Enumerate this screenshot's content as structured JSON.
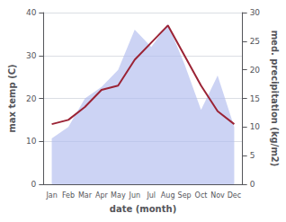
{
  "chart_data": {
    "type": "line",
    "xlabel": "date (month)",
    "ylabel": "max temp (C)",
    "y2label": "med. precipitation (kg/m2)",
    "categories": [
      "Jan",
      "Feb",
      "Mar",
      "Apr",
      "May",
      "Jun",
      "Jul",
      "Aug",
      "Sep",
      "Oct",
      "Nov",
      "Dec"
    ],
    "series": [
      {
        "type": "area",
        "axis": "y2",
        "color": "#b0bcee",
        "values": [
          8,
          10,
          15,
          17,
          20,
          27,
          24,
          28,
          21,
          13,
          19,
          10
        ]
      },
      {
        "type": "line",
        "color": "#9b2335",
        "values": [
          14,
          15,
          18,
          22,
          23,
          29,
          33,
          37,
          30,
          23,
          17,
          14
        ]
      }
    ],
    "ylim": [
      0,
      40
    ],
    "yticks": [
      0,
      10,
      20,
      30,
      40
    ],
    "y2lim": [
      0,
      30
    ],
    "y2ticks": [
      0,
      5,
      10,
      15,
      20,
      25,
      30
    ],
    "grid": true
  }
}
